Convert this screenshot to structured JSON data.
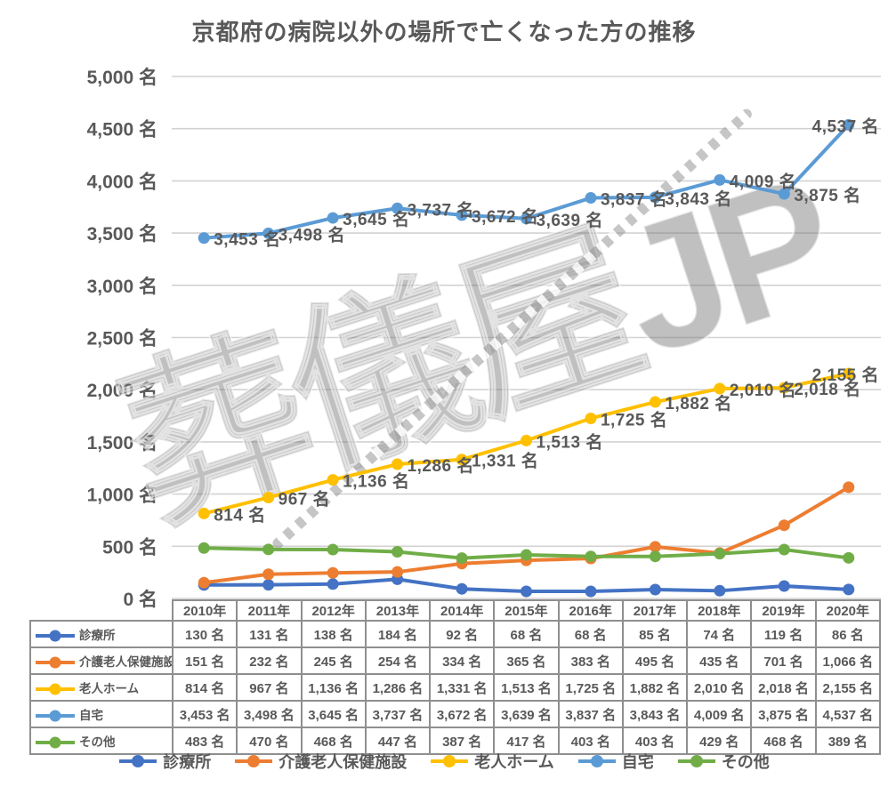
{
  "title": "京都府の病院以外の場所で亡くなった方の推移",
  "watermark": {
    "text": "葬儀屋JP"
  },
  "colors": {
    "text": "#595959",
    "gridline": "#d2d2d2",
    "table_border": "#8f8f8f"
  },
  "chart_data": {
    "type": "line",
    "title": "京都府の病院以外の場所で亡くなった方の推移",
    "xlabel": "",
    "ylabel": "",
    "unit_suffix": " 名",
    "ylim": [
      0,
      5000
    ],
    "ytick_step": 500,
    "grid": true,
    "legend_position": "bottom",
    "data_table": true,
    "categories": [
      "2010年",
      "2011年",
      "2012年",
      "2013年",
      "2014年",
      "2015年",
      "2016年",
      "2017年",
      "2018年",
      "2019年",
      "2020年"
    ],
    "series": [
      {
        "name": "診療所",
        "color": "#4472C4",
        "data_labels": false,
        "values": [
          130,
          131,
          138,
          184,
          92,
          68,
          68,
          85,
          74,
          119,
          86
        ]
      },
      {
        "name": "介護老人保健施設",
        "color": "#ED7D31",
        "data_labels": false,
        "values": [
          151,
          232,
          245,
          254,
          334,
          365,
          383,
          495,
          435,
          701,
          1066
        ]
      },
      {
        "name": "老人ホーム",
        "color": "#FFC000",
        "data_labels": true,
        "values": [
          814,
          967,
          1136,
          1286,
          1331,
          1513,
          1725,
          1882,
          2010,
          2018,
          2155
        ]
      },
      {
        "name": "自宅",
        "color": "#5B9BD5",
        "data_labels": true,
        "values": [
          3453,
          3498,
          3645,
          3737,
          3672,
          3639,
          3837,
          3843,
          4009,
          3875,
          4537
        ]
      },
      {
        "name": "その他",
        "color": "#70AD47",
        "data_labels": false,
        "values": [
          483,
          470,
          468,
          447,
          387,
          417,
          403,
          403,
          429,
          468,
          389
        ]
      }
    ]
  }
}
